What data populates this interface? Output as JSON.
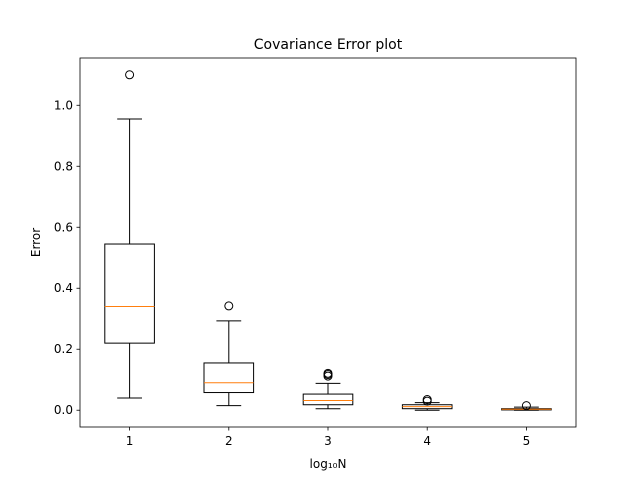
{
  "chart_data": {
    "type": "boxplot",
    "title": "Covariance Error plot",
    "xlabel": "log₁₀N",
    "ylabel": "Error",
    "ylim": [
      -0.055,
      1.155
    ],
    "yticks": [
      0.0,
      0.2,
      0.4,
      0.6,
      0.8,
      1.0
    ],
    "ytick_labels": [
      "0.0",
      "0.2",
      "0.4",
      "0.6",
      "0.8",
      "1.0"
    ],
    "categories": [
      "1",
      "2",
      "3",
      "4",
      "5"
    ],
    "boxes": [
      {
        "label": "1",
        "whislo": 0.04,
        "q1": 0.22,
        "med": 0.34,
        "q3": 0.545,
        "whishi": 0.955,
        "fliers": [
          1.1
        ]
      },
      {
        "label": "2",
        "whislo": 0.015,
        "q1": 0.058,
        "med": 0.09,
        "q3": 0.155,
        "whishi": 0.293,
        "fliers": [
          0.342
        ]
      },
      {
        "label": "3",
        "whislo": 0.005,
        "q1": 0.018,
        "med": 0.032,
        "q3": 0.053,
        "whishi": 0.088,
        "fliers": [
          0.112,
          0.117,
          0.121
        ]
      },
      {
        "label": "4",
        "whislo": 0.0,
        "q1": 0.005,
        "med": 0.012,
        "q3": 0.018,
        "whishi": 0.025,
        "fliers": [
          0.03,
          0.035
        ]
      },
      {
        "label": "5",
        "whislo": 0.0,
        "q1": 0.001,
        "med": 0.003,
        "q3": 0.005,
        "whishi": 0.01,
        "fliers": [
          0.015
        ]
      }
    ],
    "grid": false,
    "colors": {
      "box": "#000000",
      "median": "#ff7f0e",
      "flier": "#000000"
    }
  }
}
